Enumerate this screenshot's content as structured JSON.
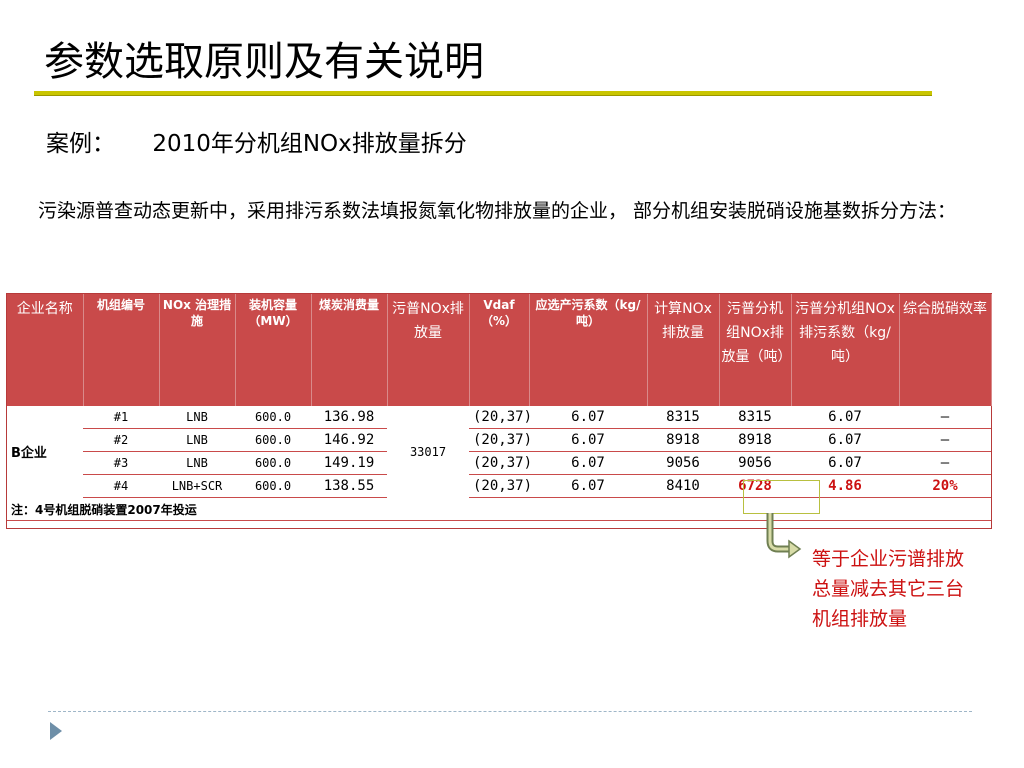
{
  "slide": {
    "title": "参数选取原则及有关说明",
    "case_label": "案例：",
    "case_text": "2010年分机组NOx排放量拆分",
    "intro": "污染源普查动态更新中，采用排污系数法填报氮氧化物排放量的企业， 部分机组安装脱硝设施基数拆分方法：",
    "callout": "等于企业污谱排放总量减去其它三台机组排放量"
  },
  "table": {
    "headers": [
      "企业名称",
      "机组编号",
      "NOx 治理措施",
      "装机容量（MW）",
      "煤炭消费量",
      "污普NOx排放量",
      "Vdaf（%）",
      "应选产污系数（kg/吨）",
      "计算NOx排放量",
      "污普分机组NOx排放量（吨）",
      "污普分机组NOx排污系数（kg/吨）",
      "综合脱硝效率"
    ],
    "company": "B企业",
    "total_emission": "33017",
    "rows": [
      {
        "unit": "#1",
        "measure": "LNB",
        "capacity": "600.0",
        "coal": "136.98",
        "vdaf": "(20,37)",
        "factor": "6.07",
        "calc": "8315",
        "split": "8315",
        "split_factor": "6.07",
        "eff": "—"
      },
      {
        "unit": "#2",
        "measure": "LNB",
        "capacity": "600.0",
        "coal": "146.92",
        "vdaf": "(20,37)",
        "factor": "6.07",
        "calc": "8918",
        "split": "8918",
        "split_factor": "6.07",
        "eff": "—"
      },
      {
        "unit": "#3",
        "measure": "LNB",
        "capacity": "600.0",
        "coal": "149.19",
        "vdaf": "(20,37)",
        "factor": "6.07",
        "calc": "9056",
        "split": "9056",
        "split_factor": "6.07",
        "eff": "—"
      },
      {
        "unit": "#4",
        "measure": "LNB+SCR",
        "capacity": "600.0",
        "coal": "138.55",
        "vdaf": "(20,37)",
        "factor": "6.07",
        "calc": "8410",
        "split": "6728",
        "split_factor": "4.86",
        "eff": "20%"
      }
    ],
    "note": "注：4号机组脱硝装置2007年投运"
  },
  "colors": {
    "header_bg": "#c94a4a",
    "accent_red": "#cc1111",
    "title_rule": "#c9c500"
  },
  "icons": {
    "arrow": "bent-arrow-icon",
    "nav": "triangle-nav-icon"
  }
}
